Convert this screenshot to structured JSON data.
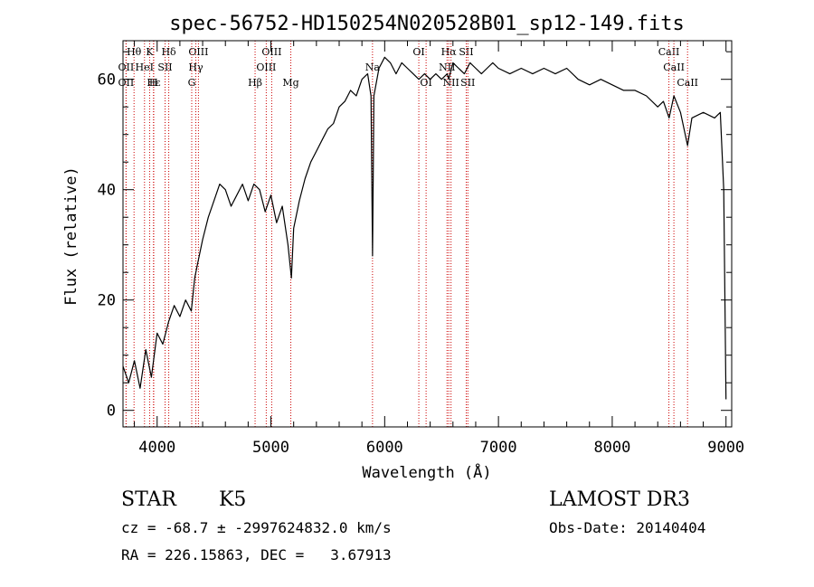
{
  "chart_data": {
    "type": "line",
    "title": "spec-56752-HD150254N020528B01_sp12-149.fits",
    "xlabel": "Wavelength (Å)",
    "ylabel": "Flux (relative)",
    "xlim": [
      3700,
      9050
    ],
    "ylim": [
      -3,
      67
    ],
    "x_ticks": [
      4000,
      5000,
      6000,
      7000,
      8000,
      9000
    ],
    "y_ticks": [
      0,
      20,
      40,
      60
    ],
    "grid": false,
    "series": [
      {
        "x": [
          3700,
          3750,
          3800,
          3850,
          3900,
          3950,
          4000,
          4050,
          4100,
          4150,
          4200,
          4250,
          4300,
          4330,
          4360,
          4400,
          4450,
          4500,
          4550,
          4600,
          4650,
          4700,
          4750,
          4800,
          4850,
          4900,
          4950,
          5000,
          5050,
          5100,
          5150,
          5180,
          5200,
          5250,
          5300,
          5350,
          5400,
          5450,
          5500,
          5550,
          5600,
          5650,
          5700,
          5750,
          5800,
          5850,
          5880,
          5893,
          5905,
          5950,
          6000,
          6050,
          6100,
          6150,
          6200,
          6250,
          6300,
          6350,
          6400,
          6450,
          6500,
          6550,
          6563,
          6600,
          6650,
          6700,
          6750,
          6800,
          6850,
          6900,
          6950,
          7000,
          7100,
          7200,
          7300,
          7400,
          7500,
          7600,
          7700,
          7800,
          7900,
          8000,
          8100,
          8200,
          8300,
          8400,
          8450,
          8500,
          8542,
          8600,
          8662,
          8700,
          8800,
          8900,
          8950,
          8980,
          9000
        ],
        "values": [
          8,
          5,
          9,
          4,
          11,
          6,
          14,
          12,
          16,
          19,
          17,
          20,
          18,
          24,
          27,
          31,
          35,
          38,
          41,
          40,
          37,
          39,
          41,
          38,
          41,
          40,
          36,
          39,
          34,
          37,
          30,
          24,
          33,
          38,
          42,
          45,
          47,
          49,
          51,
          52,
          55,
          56,
          58,
          57,
          60,
          61,
          57,
          28,
          57,
          62,
          64,
          63,
          61,
          63,
          62,
          61,
          60,
          61,
          60,
          61,
          60,
          61,
          60,
          63,
          62,
          61,
          63,
          62,
          61,
          62,
          63,
          62,
          61,
          62,
          61,
          62,
          61,
          62,
          60,
          59,
          60,
          59,
          58,
          58,
          57,
          55,
          56,
          53,
          57,
          54,
          48,
          53,
          54,
          53,
          54,
          40,
          2
        ]
      }
    ],
    "lines": [
      {
        "label": "Hθ",
        "x": 3797,
        "row": 0
      },
      {
        "label": "OII",
        "x": 3727,
        "row": 1
      },
      {
        "label": "K",
        "x": 3934,
        "row": 0
      },
      {
        "label": "HeI",
        "x": 3889,
        "row": 1
      },
      {
        "label": "Hδ",
        "x": 4102,
        "row": 0
      },
      {
        "label": "SII",
        "x": 4070,
        "row": 1
      },
      {
        "label": "OIII",
        "x": 4363,
        "row": 0
      },
      {
        "label": "Hγ",
        "x": 4340,
        "row": 1
      },
      {
        "label": "OII",
        "x": 3727,
        "row": 2
      },
      {
        "label": "Hε",
        "x": 3970,
        "row": 2
      },
      {
        "label": "H",
        "x": 3968,
        "row": 2
      },
      {
        "label": "G",
        "x": 4304,
        "row": 2
      },
      {
        "label": "OIII",
        "x": 5007,
        "row": 0
      },
      {
        "label": "OIII",
        "x": 4959,
        "row": 1
      },
      {
        "label": "Hβ",
        "x": 4861,
        "row": 2
      },
      {
        "label": "Mg",
        "x": 5175,
        "row": 2
      },
      {
        "label": "Na",
        "x": 5893,
        "row": 1
      },
      {
        "label": "OI",
        "x": 6300,
        "row": 0
      },
      {
        "label": "OI",
        "x": 6364,
        "row": 2
      },
      {
        "label": "Hα",
        "x": 6563,
        "row": 0
      },
      {
        "label": "SII",
        "x": 6717,
        "row": 0
      },
      {
        "label": "NII",
        "x": 6548,
        "row": 1
      },
      {
        "label": "NII",
        "x": 6583,
        "row": 2
      },
      {
        "label": "SII",
        "x": 6731,
        "row": 2
      },
      {
        "label": "CaII",
        "x": 8498,
        "row": 0
      },
      {
        "label": "CaII",
        "x": 8542,
        "row": 1
      },
      {
        "label": "CaII",
        "x": 8662,
        "row": 2
      }
    ],
    "colors": {
      "spectrum": "#000000",
      "lines": "#cc0000",
      "axes": "#000000"
    }
  },
  "info": {
    "object_class": "STAR",
    "subclass": "K5",
    "survey": "LAMOST DR3",
    "cz": "cz = -68.7 ± -2997624832.0 km/s",
    "obs_date": "Obs-Date: 20140404",
    "coords": "RA = 226.15863, DEC =   3.67913"
  }
}
